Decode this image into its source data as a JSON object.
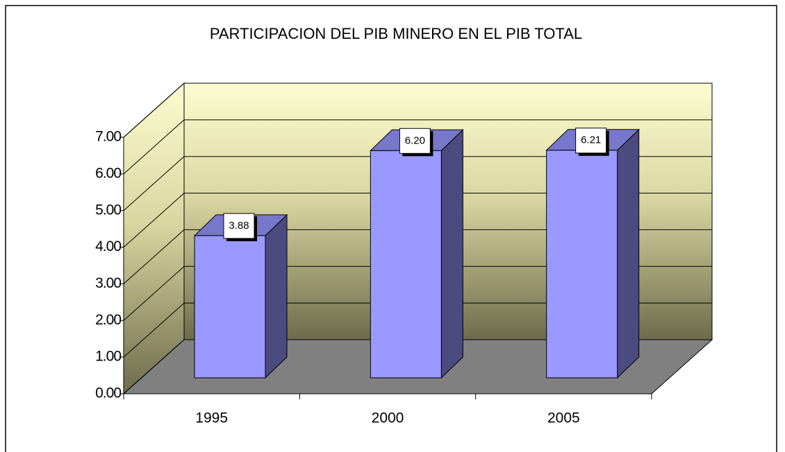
{
  "chart_data": {
    "type": "bar3d",
    "title": "PARTICIPACION DEL PIB MINERO EN EL PIB TOTAL",
    "categories": [
      "1995",
      "2000",
      "2005"
    ],
    "values": [
      3.88,
      6.2,
      6.21
    ],
    "value_labels": [
      "3.88",
      "6.20",
      "6.21"
    ],
    "color": "#9999ff",
    "ylim": [
      0,
      7
    ],
    "yticks": [
      {
        "value": 0,
        "label": "0.00"
      },
      {
        "value": 1,
        "label": "1.00"
      },
      {
        "value": 2,
        "label": "2.00"
      },
      {
        "value": 3,
        "label": "3.00"
      },
      {
        "value": 4,
        "label": "4.00"
      },
      {
        "value": 5,
        "label": "5.00"
      },
      {
        "value": 6,
        "label": "6.00"
      },
      {
        "value": 7,
        "label": "7.00"
      }
    ],
    "grid": true
  }
}
